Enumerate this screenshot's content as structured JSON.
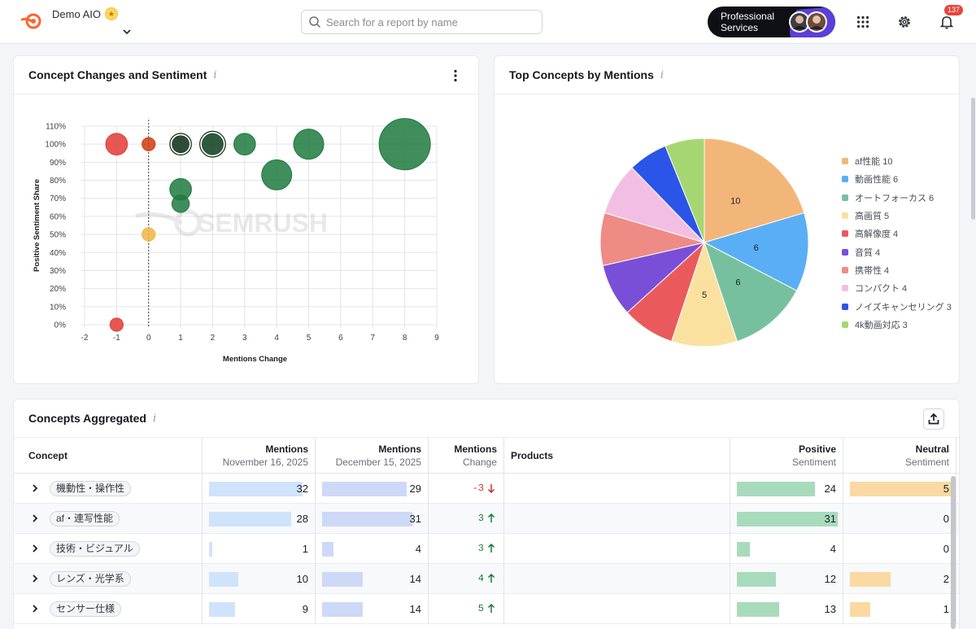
{
  "header": {
    "project_name": "Demo AIO",
    "search_placeholder": "Search for a report by name",
    "promo_label": "Professional Services",
    "notification_count": "137"
  },
  "scatter_card": {
    "title": "Concept Changes and Sentiment",
    "info": "i",
    "watermark": "SEMRUSH"
  },
  "pie_card": {
    "title": "Top Concepts by Mentions",
    "info": "i"
  },
  "table_card": {
    "title": "Concepts Aggregated",
    "info": "i",
    "columns": [
      {
        "main": "Concept",
        "sub": ""
      },
      {
        "main": "Mentions",
        "sub": "November 16, 2025"
      },
      {
        "main": "Mentions",
        "sub": "December 15, 2025"
      },
      {
        "main": "Mentions",
        "sub": "Change"
      },
      {
        "main": "Products",
        "sub": ""
      },
      {
        "main": "Positive",
        "sub": "Sentiment"
      },
      {
        "main": "Neutral",
        "sub": "Sentiment"
      }
    ],
    "rows": [
      {
        "concept": "機動性・操作性",
        "nov": "32",
        "dec": "29",
        "change": "-3",
        "dir": "down",
        "positive": "24",
        "neutral": "5",
        "nov_v": 32,
        "dec_v": 29,
        "pos_v": 24,
        "neu_v": 5
      },
      {
        "concept": "af・連写性能",
        "nov": "28",
        "dec": "31",
        "change": "3",
        "dir": "up",
        "positive": "31",
        "neutral": "0",
        "nov_v": 28,
        "dec_v": 31,
        "pos_v": 31,
        "neu_v": 0
      },
      {
        "concept": "技術・ビジュアル",
        "nov": "1",
        "dec": "4",
        "change": "3",
        "dir": "up",
        "positive": "4",
        "neutral": "0",
        "nov_v": 1,
        "dec_v": 4,
        "pos_v": 4,
        "neu_v": 0
      },
      {
        "concept": "レンズ・光学系",
        "nov": "10",
        "dec": "14",
        "change": "4",
        "dir": "up",
        "positive": "12",
        "neutral": "2",
        "nov_v": 10,
        "dec_v": 14,
        "pos_v": 12,
        "neu_v": 2
      },
      {
        "concept": "センサー仕様",
        "nov": "9",
        "dec": "14",
        "change": "5",
        "dir": "up",
        "positive": "13",
        "neutral": "1",
        "nov_v": 9,
        "dec_v": 14,
        "pos_v": 13,
        "neu_v": 1
      }
    ]
  },
  "chart_data": [
    {
      "type": "scatter",
      "title": "Concept Changes and Sentiment",
      "xlabel": "Mentions Change",
      "ylabel": "Positive Sentiment Share",
      "xlim": [
        -2,
        9
      ],
      "ylim": [
        0,
        110
      ],
      "x_ticks": [
        "-2",
        "-1",
        "0",
        "1",
        "2",
        "3",
        "4",
        "5",
        "6",
        "7",
        "8",
        "9"
      ],
      "y_ticks": [
        "0%",
        "10%",
        "20%",
        "30%",
        "40%",
        "50%",
        "60%",
        "70%",
        "80%",
        "90%",
        "100%",
        "110%"
      ],
      "grid": true,
      "zero_line": "dashed vertical at x=0",
      "points": [
        {
          "x": -1,
          "y": 100,
          "size": 3,
          "color": "#e33b35"
        },
        {
          "x": 0,
          "y": 100,
          "size": 1,
          "color": "#d23a10"
        },
        {
          "x": 1,
          "y": 100,
          "size": 2,
          "color": "#0b2e16",
          "highlight": true
        },
        {
          "x": 2,
          "y": 100,
          "size": 3,
          "color": "#0c3d1f",
          "highlight": true
        },
        {
          "x": 3,
          "y": 100,
          "size": 3,
          "color": "#1f7a3e"
        },
        {
          "x": 5,
          "y": 100,
          "size": 5,
          "color": "#1f7a3e"
        },
        {
          "x": 8,
          "y": 100,
          "size": 10,
          "color": "#1f7a3e"
        },
        {
          "x": 4,
          "y": 83,
          "size": 5,
          "color": "#1f7a3e"
        },
        {
          "x": 1,
          "y": 75,
          "size": 3,
          "color": "#1f7a3e"
        },
        {
          "x": 1,
          "y": 67,
          "size": 2,
          "color": "#1f7a3e"
        },
        {
          "x": 0,
          "y": 50,
          "size": 1,
          "color": "#f2b442"
        },
        {
          "x": -1,
          "y": 0,
          "size": 1,
          "color": "#e33b35"
        }
      ]
    },
    {
      "type": "pie",
      "title": "Top Concepts by Mentions",
      "slices": [
        {
          "label": "af性能",
          "value": 10,
          "color": "#f3b679"
        },
        {
          "label": "動画性能",
          "value": 6,
          "color": "#5aaef5"
        },
        {
          "label": "オートフォーカス",
          "value": 6,
          "color": "#77c09f"
        },
        {
          "label": "高画質",
          "value": 5,
          "color": "#fae1a0"
        },
        {
          "label": "高解像度",
          "value": 4,
          "color": "#ea5a5d"
        },
        {
          "label": "音質",
          "value": 4,
          "color": "#7a4fd8"
        },
        {
          "label": "携帯性",
          "value": 4,
          "color": "#ee8b85"
        },
        {
          "label": "コンパクト",
          "value": 4,
          "color": "#f3bee3"
        },
        {
          "label": "ノイズキャンセリング",
          "value": 3,
          "color": "#2a55e8"
        },
        {
          "label": "4k動画対応",
          "value": 3,
          "color": "#a6d672"
        }
      ],
      "slice_labels_shown": [
        "10",
        "6",
        "6",
        "5"
      ],
      "legend": "right"
    }
  ]
}
